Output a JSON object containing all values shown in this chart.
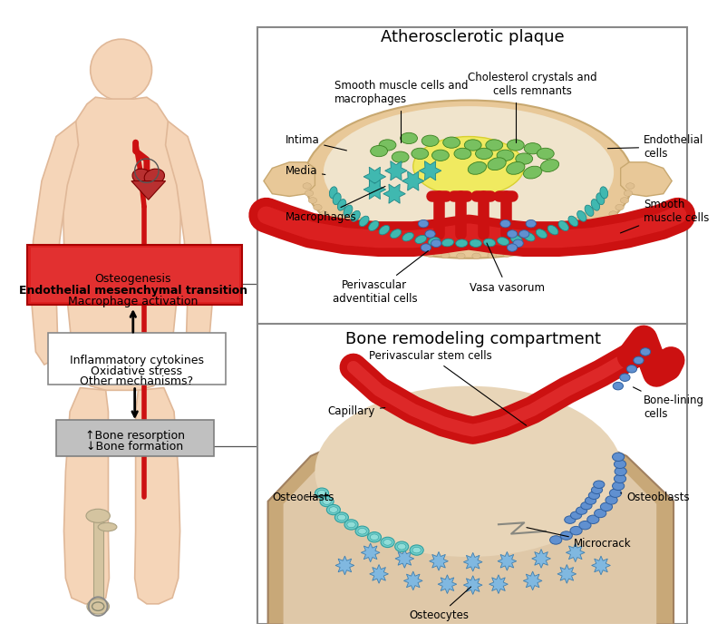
{
  "bg_color": "#ffffff",
  "body_color": "#f5d5b8",
  "body_outline": "#e0b898",
  "red_color": "#cc1111",
  "plaque_bg": "#e8c898",
  "plaque_outline": "#c8a870",
  "bone_bg": "#c8a878",
  "bone_inner": "#dfc8a8",
  "teal_color": "#40b8b0",
  "green_color": "#78c060",
  "blue_cell_color": "#6090d0",
  "blue_cell_light": "#a0c8e8",
  "yellow_color": "#f0e860",
  "title1": "Atherosclerotic plaque",
  "title2": "Bone remodeling compartment",
  "red_box_text": [
    "Osteogenesis",
    "Endothelial mesenchymal transition",
    "Macrophage activation"
  ],
  "mid_box_text": [
    "Inflammatory cytokines",
    "Oxidative stress",
    "Other mechanisms?"
  ],
  "bone_box_text": [
    "↑Bone resorption",
    "↓Bone formation"
  ]
}
